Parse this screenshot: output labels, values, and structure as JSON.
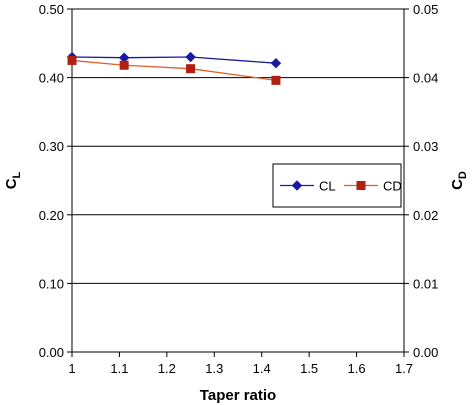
{
  "chart_data": {
    "type": "line",
    "xlabel": "Taper ratio",
    "ylabel_left": {
      "main": "C",
      "sub": "L"
    },
    "ylabel_right": {
      "main": "C",
      "sub": "D"
    },
    "xlim": [
      1,
      1.7
    ],
    "x_ticks": [
      "1",
      "1.1",
      "1.2",
      "1.3",
      "1.4",
      "1.5",
      "1.6",
      "1.7"
    ],
    "ylim_left": [
      0,
      0.5
    ],
    "y_ticks_left": [
      "0.00",
      "0.10",
      "0.20",
      "0.30",
      "0.40",
      "0.50"
    ],
    "ylim_right": [
      0,
      0.05
    ],
    "y_ticks_right": [
      "0.00",
      "0.01",
      "0.02",
      "0.03",
      "0.04",
      "0.05"
    ],
    "grid": "horizontal",
    "legend_position": "right-middle",
    "series": [
      {
        "name": "CL",
        "axis": "left",
        "color": "#1a1aa0",
        "marker": "diamond",
        "x": [
          1.0,
          1.11,
          1.25,
          1.43
        ],
        "y": [
          0.43,
          0.429,
          0.43,
          0.421
        ]
      },
      {
        "name": "CD",
        "axis": "right",
        "color": "#e0602a",
        "marker_color": "#b02010",
        "marker": "square",
        "x": [
          1.0,
          1.11,
          1.25,
          1.43
        ],
        "y": [
          0.0425,
          0.0418,
          0.0413,
          0.0396
        ]
      }
    ]
  }
}
